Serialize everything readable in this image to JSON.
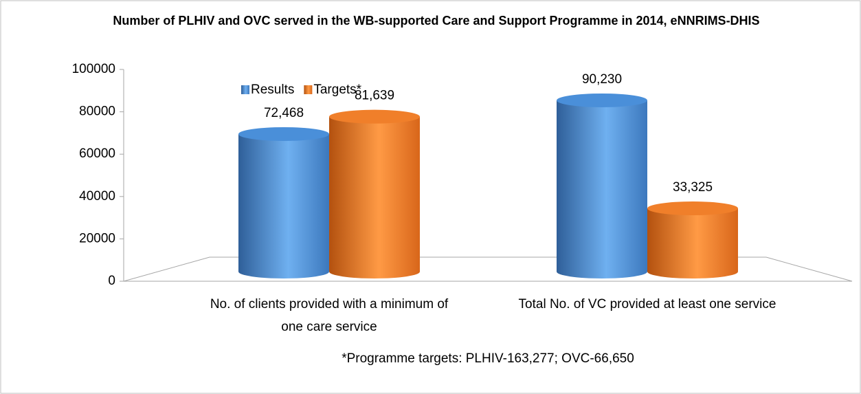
{
  "chart_data": {
    "type": "bar3d",
    "title": "Number of PLHIV and OVC served in the WB-supported Care and Support Programme in 2014, eNNRIMS-DHIS",
    "categories": [
      "No. of clients provided with a minimum of one care service",
      "Total No. of VC provided at least one service"
    ],
    "series": [
      {
        "name": "Results",
        "color": "#4a8fd9",
        "values": [
          72468,
          90230
        ],
        "value_labels": [
          "72,468",
          "90,230"
        ]
      },
      {
        "name": "Targets*",
        "color": "#f07f2a",
        "values": [
          81639,
          33325
        ],
        "value_labels": [
          "81,639",
          "33,325"
        ]
      }
    ],
    "ylim": [
      0,
      100000
    ],
    "yticks": [
      0,
      20000,
      40000,
      60000,
      80000,
      100000
    ],
    "legend": "top",
    "annotation": "*Programme targets: PLHIV-163,277; OVC-66,650"
  }
}
